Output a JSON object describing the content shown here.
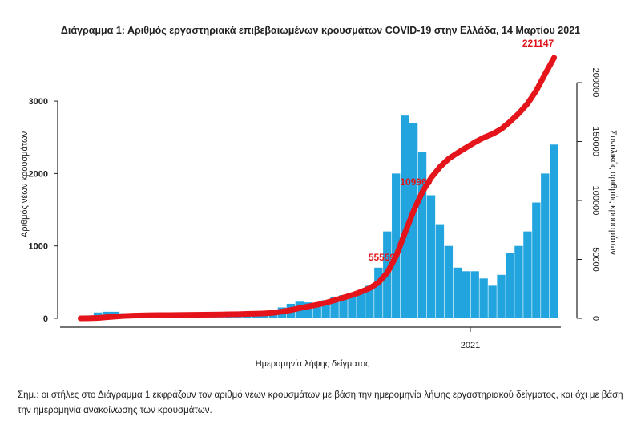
{
  "chart_data": {
    "type": "bar+line",
    "title": "Διάγραμμα 1: Αριθμός εργαστηριακά επιβεβαιωμένων κρουσμάτων COVID-19 στην Ελλάδα, 14 Μαρτίου 2021",
    "xlabel": "Ημερομηνία λήψης δείγματος",
    "ylabel_left": "Αριθμός νέων κρουσμάτων",
    "ylabel_right": "Συνολικός αριθμός κρουσμάτων",
    "ylim_left": [
      0,
      3600
    ],
    "ylim_right": [
      0,
      221147
    ],
    "yticks_left": [
      "0",
      "1000",
      "2000",
      "3000"
    ],
    "yticks_left_values": [
      0,
      1000,
      2000,
      3000
    ],
    "yticks_right": [
      "0",
      "50000",
      "100000",
      "150000",
      "200000"
    ],
    "yticks_right_values": [
      0,
      50000,
      100000,
      150000,
      200000
    ],
    "xtick_label": "2021",
    "colors": {
      "bars": "#22a5de",
      "cumulative": "#e5141a"
    },
    "series": [
      {
        "name": "new_cases",
        "type": "bar",
        "values": [
          10,
          40,
          80,
          90,
          90,
          70,
          60,
          40,
          30,
          15,
          12,
          10,
          8,
          10,
          12,
          15,
          15,
          20,
          20,
          25,
          30,
          40,
          80,
          150,
          200,
          230,
          220,
          200,
          250,
          300,
          320,
          320,
          380,
          450,
          700,
          1200,
          2000,
          2800,
          2700,
          2300,
          1700,
          1300,
          1000,
          700,
          650,
          650,
          550,
          450,
          600,
          900,
          1000,
          1200,
          1600,
          2000,
          2400
        ]
      },
      {
        "name": "cumulative_cases",
        "type": "line",
        "values": [
          10,
          50,
          330,
          900,
          1500,
          2000,
          2300,
          2500,
          2600,
          2700,
          2760,
          2830,
          2880,
          2950,
          3030,
          3130,
          3240,
          3380,
          3520,
          3700,
          3900,
          4200,
          4700,
          5700,
          7000,
          8600,
          10100,
          11500,
          13300,
          15400,
          17600,
          19800,
          22500,
          25600,
          30500,
          38900,
          52900,
          72500,
          91400,
          107500,
          119400,
          128500,
          135500,
          140400,
          145000,
          149500,
          153400,
          156500,
          160700,
          167000,
          174000,
          182400,
          193600,
          207600,
          221147
        ]
      }
    ],
    "annotations": [
      {
        "text": "55559",
        "week_index": 36
      },
      {
        "text": "109960",
        "week_index": 39
      },
      {
        "text": "221147",
        "week_index": 54
      }
    ]
  },
  "footnote": "Σημ.: οι στήλες στο Διάγραμμα 1 εκφράζουν τον αριθμό νέων κρουσμάτων με βάση την ημερομηνία λήψης εργαστηριακού δείγματος, και όχι με βάση την ημερομηνία ανακοίνωσης των κρουσμάτων."
}
